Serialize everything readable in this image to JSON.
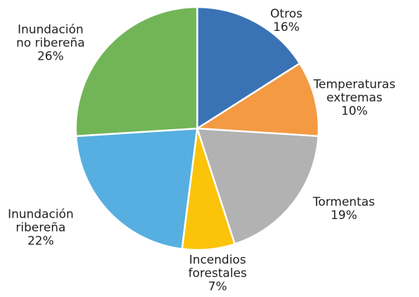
{
  "chart_data": {
    "type": "pie",
    "categories": [
      "Otros",
      "Temperaturas extremas",
      "Tormentas",
      "Incendios forestales",
      "Inundación ribereña",
      "Inundación no ribereña"
    ],
    "values": [
      16,
      10,
      19,
      7,
      22,
      26
    ],
    "value_labels": [
      "16%",
      "10%",
      "19%",
      "7%",
      "22%",
      "26%"
    ],
    "colors": [
      "#3a73b5",
      "#f39a43",
      "#b2b2b2",
      "#fbc30a",
      "#56afe0",
      "#72b557"
    ]
  }
}
